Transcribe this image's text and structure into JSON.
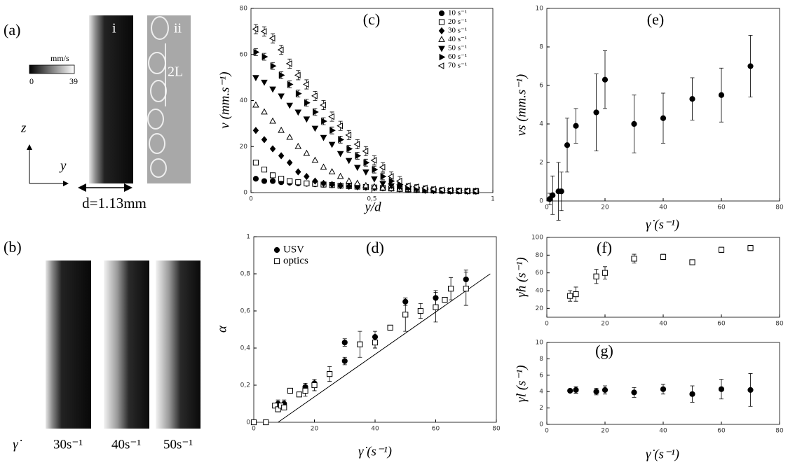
{
  "figure": {
    "panel_a": {
      "label": "(a)",
      "image_i": "i",
      "image_ii": "ii",
      "colorbar": {
        "label": "mm/s",
        "min": "0",
        "max": "39"
      },
      "scale_mark": "2L",
      "axis_z": "z",
      "axis_y": "y",
      "width_label": "d=1.13mm"
    },
    "panel_b": {
      "label": "(b)",
      "symbol": "γ̇",
      "image_labels": [
        "30s⁻¹",
        "40s⁻¹",
        "50s⁻¹"
      ]
    }
  },
  "chart_data": [
    {
      "type": "scatter",
      "panel_label": "(c)",
      "xlabel": "y/d",
      "ylabel": "v (mm.s⁻¹)",
      "legend": "upper right",
      "xlim": [
        0,
        1
      ],
      "xticks": [
        0,
        {
          "value": 0.5,
          "label": "0,5"
        },
        1
      ],
      "ylim": [
        0,
        80
      ],
      "yticks": [
        0,
        20,
        40,
        60,
        80
      ],
      "x": [
        0.02,
        0.055,
        0.09,
        0.125,
        0.16,
        0.195,
        0.23,
        0.265,
        0.3,
        0.335,
        0.37,
        0.405,
        0.44,
        0.475,
        0.51,
        0.545,
        0.58,
        0.615,
        0.65,
        0.685,
        0.72,
        0.755,
        0.79,
        0.825,
        0.86,
        0.895,
        0.93
      ],
      "series": [
        {
          "name": "10 s⁻¹",
          "marker": "circle",
          "color": "#000",
          "values": [
            6,
            5,
            5,
            4.5,
            4.3,
            4,
            3.8,
            3.6,
            3.4,
            3.2,
            3,
            2.8,
            2.6,
            2.4,
            2.2,
            2,
            1.8,
            1.6,
            1.4,
            1.2,
            1,
            0.9,
            0.8,
            0.7,
            0.6,
            0.6,
            0.5
          ]
        },
        {
          "name": "20 s⁻¹",
          "marker": "square-open",
          "color": "#000",
          "values": [
            13,
            10,
            7.5,
            6,
            5,
            4.5,
            4,
            3.8,
            3.5,
            3.3,
            3,
            2.8,
            2.6,
            2.4,
            2.2,
            2,
            1.8,
            1.6,
            1.4,
            1.2,
            1,
            0.9,
            0.8,
            0.7,
            0.7,
            0.6,
            0.6
          ]
        },
        {
          "name": "30 s⁻¹",
          "marker": "diamond",
          "color": "#000",
          "values": [
            27,
            23,
            19,
            16,
            13,
            9,
            7,
            5,
            4,
            3.5,
            3,
            2.7,
            2.5,
            2.3,
            2.1,
            2,
            1.8,
            1.6,
            1.4,
            1.2,
            1,
            0.9,
            0.8,
            0.7,
            0.7,
            0.6,
            0.6
          ]
        },
        {
          "name": "40 s⁻¹",
          "marker": "triangle-up-open",
          "color": "#000",
          "values": [
            38,
            35,
            31,
            27,
            24,
            20,
            17,
            14,
            11,
            9,
            7,
            5,
            4,
            3,
            2.5,
            2,
            1.8,
            1.5,
            1.3,
            1.2,
            1,
            0.9,
            0.8,
            0.7,
            0.7,
            0.6,
            0.6
          ]
        },
        {
          "name": "50 s⁻¹",
          "marker": "triangle-down",
          "color": "#000",
          "values": [
            50,
            48,
            45,
            42,
            38,
            35,
            32,
            28,
            24,
            21,
            17,
            14,
            11,
            9,
            6,
            4,
            3,
            2.5,
            2,
            1.5,
            1.2,
            1,
            0.9,
            0.8,
            0.7,
            0.6,
            0.6
          ]
        },
        {
          "name": "60 s⁻¹",
          "marker": "triangle-right",
          "color": "#000",
          "values": [
            61,
            59,
            55,
            51,
            47,
            43,
            39,
            35,
            31,
            27,
            23,
            19,
            16,
            13,
            10,
            7,
            5,
            3.5,
            2.5,
            2,
            1.5,
            1.2,
            1,
            0.9,
            0.8,
            0.7,
            0.6
          ],
          "errors": [
            1.5,
            1.5,
            1.5,
            1.5,
            1.5,
            1.5,
            1.5,
            1.5,
            1.5,
            1.5,
            1.5,
            1.5,
            1.5,
            1.5,
            1.5,
            1.5,
            1.5,
            1.5,
            1,
            1,
            1,
            1,
            1,
            1,
            1,
            1,
            1
          ]
        },
        {
          "name": "70 s⁻¹",
          "marker": "triangle-left-open",
          "color": "#000",
          "values": [
            71,
            70,
            67,
            62,
            56,
            51,
            47,
            42,
            38,
            33,
            29,
            25,
            21,
            18,
            14,
            11,
            7,
            5,
            3,
            2.5,
            2,
            1.5,
            1.2,
            1,
            0.8,
            0.7,
            0.7
          ],
          "errors": [
            2,
            2,
            2,
            2,
            2,
            2,
            2,
            2,
            2,
            2,
            2,
            2,
            2,
            2,
            2,
            2,
            2,
            2,
            1,
            1,
            1,
            1,
            1,
            1,
            1,
            1,
            1
          ]
        }
      ]
    },
    {
      "type": "scatter",
      "panel_label": "(d)",
      "xlabel": "γ̇ (s⁻¹)",
      "ylabel": "α",
      "legend": "upper left",
      "xlim": [
        0,
        80
      ],
      "xticks": [
        0,
        20,
        40,
        60,
        80
      ],
      "ylim": [
        0,
        1
      ],
      "yticks": [
        0,
        {
          "value": 0.2,
          "label": "0,2"
        },
        {
          "value": 0.4,
          "label": "0,4"
        },
        {
          "value": 0.6,
          "label": "0,6"
        },
        {
          "value": 0.8,
          "label": "0,8"
        },
        1
      ],
      "series": [
        {
          "name": "USV",
          "marker": "circle",
          "color": "#000",
          "x": [
            8,
            10,
            17,
            20,
            30,
            30,
            40,
            40,
            50,
            60,
            70
          ],
          "values": [
            0.1,
            0.1,
            0.19,
            0.21,
            0.43,
            0.33,
            0.46,
            0.43,
            0.65,
            0.67,
            0.77
          ],
          "errors": [
            0.02,
            0.02,
            0.02,
            0.02,
            0.02,
            0.02,
            0.03,
            0.03,
            0.02,
            0.04,
            0.05
          ]
        },
        {
          "name": "optics",
          "marker": "square-open",
          "color": "#000",
          "x": [
            0,
            4,
            7,
            8,
            9,
            10,
            12,
            15,
            17,
            20,
            25,
            35,
            40,
            45,
            50,
            55,
            60,
            63,
            65,
            70
          ],
          "values": [
            0,
            0,
            0.09,
            0.07,
            0.09,
            0.08,
            0.17,
            0.15,
            0.17,
            0.2,
            0.26,
            0.42,
            0.43,
            0.51,
            0.58,
            0.6,
            0.62,
            0.66,
            0.72,
            0.72
          ],
          "errors": [
            0,
            0,
            0,
            0,
            0,
            0,
            0,
            0,
            0.03,
            0.03,
            0.04,
            0.07,
            0.03,
            0,
            0.09,
            0.04,
            0.08,
            0,
            0.06,
            0.09
          ]
        }
      ],
      "line": {
        "x": [
          8,
          78
        ],
        "values": [
          0,
          0.8
        ]
      }
    },
    {
      "type": "scatter",
      "panel_label": "(e)",
      "xlabel": "γ̇ (s⁻¹)",
      "ylabel": "vs (mm.s⁻¹)",
      "xlim": [
        0,
        80
      ],
      "xticks": [
        0,
        20,
        40,
        60,
        80
      ],
      "ylim": [
        0,
        10
      ],
      "yticks": [
        0,
        2,
        4,
        6,
        8,
        10
      ],
      "series": [
        {
          "marker": "circle",
          "color": "#000",
          "x": [
            1,
            2,
            4,
            5,
            7,
            10,
            17,
            20,
            30,
            40,
            50,
            60,
            70
          ],
          "values": [
            0.1,
            0.3,
            0.5,
            0.5,
            2.9,
            3.9,
            4.6,
            6.3,
            4,
            4.3,
            5.3,
            5.5,
            7
          ],
          "errors": [
            0.3,
            1,
            1.5,
            1,
            1.4,
            0.9,
            2,
            1.5,
            1.5,
            1.3,
            1.1,
            1.4,
            1.6
          ]
        }
      ]
    },
    {
      "type": "scatter",
      "panel_label": "(f)",
      "ylabel": "γ̇h (s⁻¹)",
      "xlim": [
        0,
        80
      ],
      "xticks": [
        0,
        20,
        40,
        60,
        80
      ],
      "ylim": [
        10,
        100
      ],
      "yticks": [
        20,
        40,
        60,
        80,
        100
      ],
      "series": [
        {
          "marker": "square-open",
          "color": "#000",
          "x": [
            8,
            10,
            17,
            20,
            30,
            40,
            50,
            60,
            70
          ],
          "values": [
            34,
            36,
            56,
            60,
            76,
            78,
            72,
            86,
            88
          ],
          "errors": [
            6,
            8,
            8,
            7,
            5,
            3,
            2,
            3,
            3
          ]
        }
      ]
    },
    {
      "type": "scatter",
      "panel_label": "(g)",
      "xlabel": "γ̇ (s⁻¹)",
      "ylabel": "γ̇l (s⁻¹)",
      "xlim": [
        0,
        80
      ],
      "xticks": [
        0,
        20,
        40,
        60,
        80
      ],
      "ylim": [
        0,
        10
      ],
      "yticks": [
        0,
        2,
        4,
        6,
        8,
        10
      ],
      "series": [
        {
          "marker": "circle",
          "color": "#000",
          "x": [
            8,
            10,
            17,
            20,
            30,
            40,
            50,
            60,
            70
          ],
          "values": [
            4.1,
            4.2,
            4,
            4.2,
            3.9,
            4.3,
            3.7,
            4.3,
            4.2
          ],
          "errors": [
            0.2,
            0.4,
            0.4,
            0.5,
            0.6,
            0.6,
            1,
            1.2,
            2
          ]
        }
      ]
    }
  ]
}
